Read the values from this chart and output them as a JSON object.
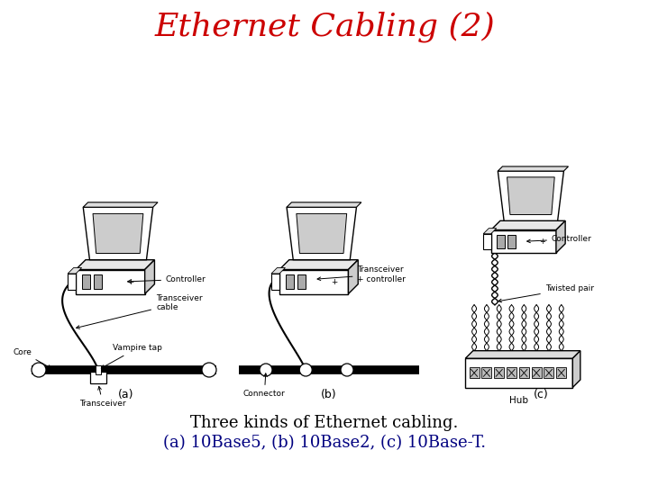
{
  "title": "Ethernet Cabling (2)",
  "title_color": "#CC0000",
  "title_fontsize": 26,
  "background_color": "#FFFFFF",
  "caption_line1": "Three kinds of Ethernet cabling.",
  "caption_line2_black": "10Base5, ",
  "caption_line2_b": "(b)",
  "caption_line2_mid": " 10Base2, ",
  "caption_line2_c": "(c)",
  "caption_line2_end": " 10Base-T.",
  "caption_fontsize": 13,
  "caption_color_black": "#000000",
  "caption_color_blue": "#000080",
  "label_a": "(a)",
  "label_b": "(b)",
  "label_c": "(c)",
  "figsize": [
    7.2,
    5.4
  ],
  "dpi": 100
}
